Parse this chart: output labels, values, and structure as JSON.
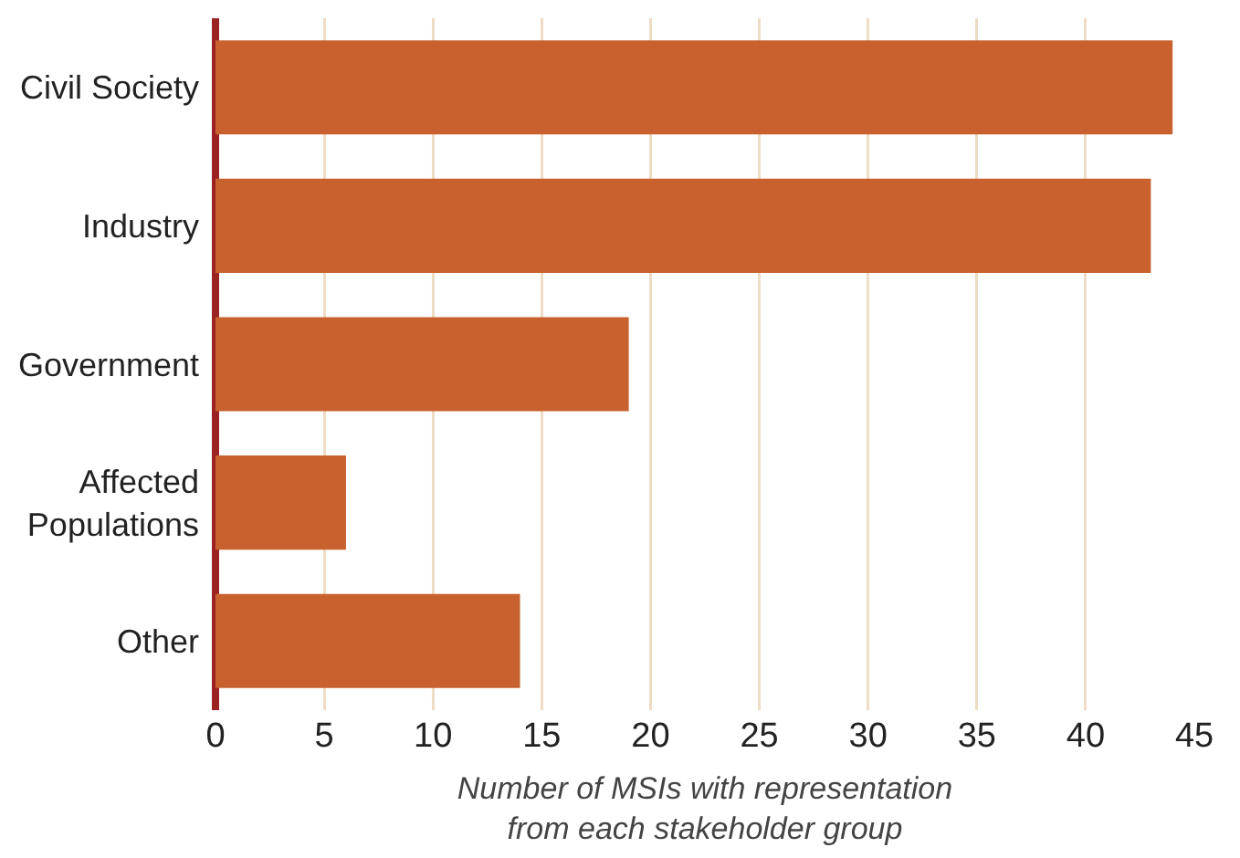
{
  "chart_data": {
    "type": "bar",
    "orientation": "horizontal",
    "categories": [
      "Civil Society",
      "Industry",
      "Government",
      "Affected Populations",
      "Other"
    ],
    "values": [
      44,
      43,
      19,
      6,
      14
    ],
    "color": "#c8612e",
    "xlabel": "Number of MSIs with representation from each stakeholder group",
    "xlim": [
      0,
      45
    ],
    "xticks": [
      0,
      5,
      10,
      15,
      20,
      25,
      30,
      35,
      40,
      45
    ],
    "grid": "x"
  }
}
